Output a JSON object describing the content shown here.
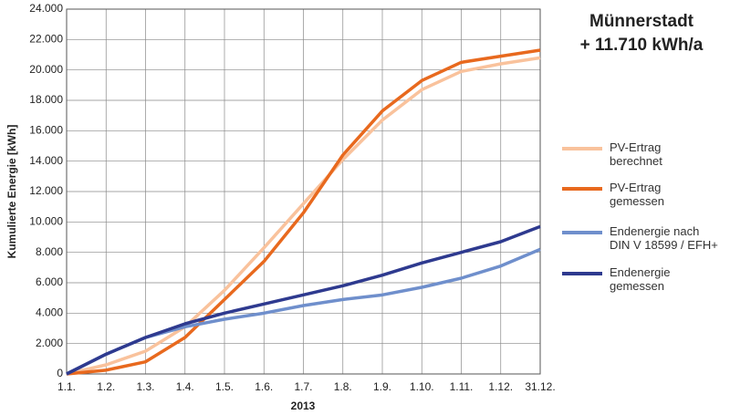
{
  "chart_data": {
    "type": "line",
    "title": "Münnerstadt",
    "subtitle": "+ 11.710 kWh/a",
    "xlabel": "2013",
    "ylabel": "Kumulierte Energie [kWh]",
    "categories": [
      "1.1.",
      "1.2.",
      "1.3.",
      "1.4.",
      "1.5.",
      "1.6.",
      "1.7.",
      "1.8.",
      "1.9.",
      "1.10.",
      "1.11.",
      "1.12.",
      "31.12."
    ],
    "series": [
      {
        "name": "PV-Ertrag\nberechnet",
        "color": "#f9c29c",
        "values": [
          0,
          600,
          1500,
          3100,
          5500,
          8300,
          11200,
          14100,
          16700,
          18700,
          19900,
          20400,
          20800
        ]
      },
      {
        "name": "PV-Ertrag\ngemessen",
        "color": "#e8691e",
        "values": [
          0,
          250,
          800,
          2400,
          4900,
          7400,
          10600,
          14400,
          17300,
          19300,
          20500,
          20900,
          21300
        ]
      },
      {
        "name": "Endenergie nach\nDIN V 18599 / EFH+",
        "color": "#6f8fcc",
        "values": [
          0,
          1300,
          2400,
          3100,
          3600,
          4000,
          4500,
          4900,
          5200,
          5700,
          6300,
          7100,
          8200
        ]
      },
      {
        "name": "Endenergie\ngemessen",
        "color": "#2e3a8f",
        "values": [
          0,
          1300,
          2400,
          3300,
          4000,
          4600,
          5200,
          5800,
          6500,
          7300,
          8000,
          8700,
          9700
        ]
      }
    ],
    "ylim": [
      0,
      24000
    ],
    "yticks": [
      0,
      {
        "value": 2000,
        "label": "2.000"
      },
      {
        "value": 4000,
        "label": "4.000"
      },
      {
        "value": 6000,
        "label": "6.000"
      },
      {
        "value": 8000,
        "label": "8.000"
      },
      {
        "value": 10000,
        "label": "10.000"
      },
      {
        "value": 12000,
        "label": "12.000"
      },
      {
        "value": 14000,
        "label": "14.000"
      },
      {
        "value": 16000,
        "label": "16.000"
      },
      {
        "value": 18000,
        "label": "18.000"
      },
      {
        "value": 20000,
        "label": "20.000"
      },
      {
        "value": 22000,
        "label": "22.000"
      },
      {
        "value": 24000,
        "label": "24.000"
      }
    ],
    "grid": true
  }
}
